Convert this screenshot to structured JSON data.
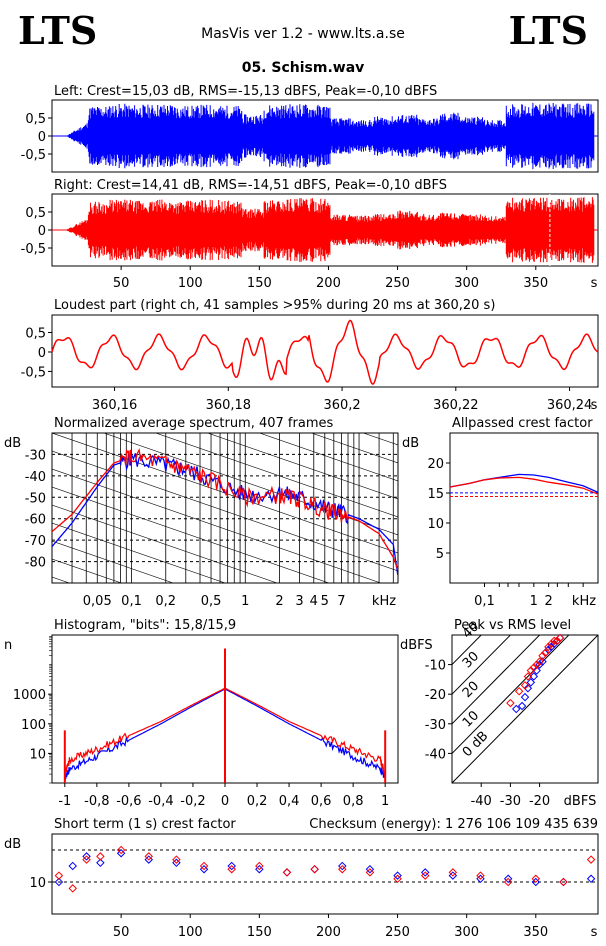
{
  "header": {
    "logo_left": "LTS",
    "logo_right": "LTS",
    "app_title": "MasVis ver 1.2 - www.lts.a.se",
    "file_title": "05. Schism.wav"
  },
  "colors": {
    "left": "#0000ff",
    "right": "#ff0000",
    "grid": "#000000",
    "text": "#000000"
  },
  "chart_data": [
    {
      "type": "area",
      "title": "Left: Crest=15,03 dB, RMS=-15,13 dBFS, Peak=-0,10 dBFS",
      "ytick_labels": [
        "0,5",
        "0",
        "-0,5"
      ],
      "yticks": [
        0.5,
        0,
        -0.5
      ],
      "ylim": [
        -1,
        1
      ],
      "xlim": [
        0,
        395
      ],
      "series": [
        {
          "values": [
            0.45,
            0.85,
            0.9,
            0.88,
            0.9,
            0.85,
            0.88,
            0.85,
            0.6,
            0.88,
            0.9,
            0.88,
            0.5,
            0.45,
            0.55,
            0.6,
            0.5,
            0.65,
            0.55,
            0.45,
            0.9,
            0.92,
            0.92,
            0.92
          ]
        }
      ]
    },
    {
      "type": "area",
      "title": "Right: Crest=14,41 dB, RMS=-14,51 dBFS, Peak=-0,10 dBFS",
      "ytick_labels": [
        "0,5",
        "0",
        "-0,5"
      ],
      "yticks": [
        0.5,
        0,
        -0.5
      ],
      "ylim": [
        -1,
        1
      ],
      "xlim": [
        0,
        395
      ],
      "xtick_labels": [
        "50",
        "100",
        "150",
        "200",
        "250",
        "300",
        "350",
        "s"
      ],
      "xticks": [
        50,
        100,
        150,
        200,
        250,
        300,
        350
      ],
      "marker_s": 360.2,
      "series": [
        {
          "values": [
            0.4,
            0.8,
            0.85,
            0.82,
            0.85,
            0.82,
            0.85,
            0.82,
            0.6,
            0.85,
            0.9,
            0.88,
            0.45,
            0.4,
            0.45,
            0.55,
            0.45,
            0.5,
            0.45,
            0.4,
            0.9,
            0.92,
            0.92,
            0.92
          ]
        }
      ]
    },
    {
      "type": "line",
      "title": "Loudest part (right ch, 41 samples >95% during 20 ms at 360,20 s)",
      "ytick_labels": [
        "0,5",
        "0",
        "-0,5"
      ],
      "yticks": [
        0.5,
        0,
        -0.5
      ],
      "ylim": [
        -0.9,
        0.95
      ],
      "xlim": [
        360.149,
        360.245
      ],
      "xtick_labels": [
        "360,16",
        "360,18",
        "360,2",
        "360,22",
        "360,24",
        "s"
      ],
      "xticks": [
        360.16,
        360.18,
        360.2,
        360.22,
        360.24
      ]
    },
    {
      "type": "line",
      "title": "Normalized average spectrum, 407 frames",
      "ylabel": "dB",
      "ytick_labels": [
        "-30",
        "-40",
        "-50",
        "-60",
        "-70",
        "-80"
      ],
      "yticks": [
        -30,
        -40,
        -50,
        -60,
        -70,
        -80
      ],
      "ylim": [
        -90,
        -20
      ],
      "xscale": "log",
      "xlim": [
        0.02,
        22
      ],
      "xtick_labels": [
        "0,05",
        "0,1",
        "0,2",
        "0,5",
        "1",
        "2",
        "3",
        "4",
        "5",
        "7",
        "kHz"
      ],
      "xticks": [
        0.05,
        0.1,
        0.2,
        0.5,
        1,
        2,
        3,
        4,
        5,
        7
      ],
      "series": [
        {
          "x": [
            0.02,
            0.03,
            0.05,
            0.07,
            0.1,
            0.2,
            0.3,
            0.5,
            1,
            2,
            3,
            5,
            7,
            10,
            15,
            20,
            22
          ],
          "values": [
            -73,
            -62,
            -45,
            -35,
            -32,
            -35,
            -37,
            -42,
            -49,
            -48,
            -50,
            -55,
            -57,
            -60,
            -65,
            -72,
            -87
          ]
        },
        {
          "x": [
            0.02,
            0.03,
            0.05,
            0.07,
            0.1,
            0.2,
            0.3,
            0.5,
            1,
            2,
            3,
            5,
            7,
            10,
            15,
            20,
            22
          ],
          "values": [
            -66,
            -58,
            -43,
            -34,
            -31,
            -34,
            -37,
            -42,
            -50,
            -49,
            -51,
            -56,
            -58,
            -61,
            -67,
            -78,
            -84
          ]
        }
      ]
    },
    {
      "type": "line",
      "title": "Allpassed crest factor",
      "ylabel": "dB",
      "ytick_labels": [
        "20",
        "15",
        "10",
        "5"
      ],
      "yticks": [
        20,
        15,
        10,
        5
      ],
      "ylim": [
        0,
        25
      ],
      "xscale": "log",
      "xlim": [
        0.02,
        20
      ],
      "xtick_labels": [
        "0,1",
        "1",
        "2",
        "kHz"
      ],
      "xticks": [
        0.1,
        1,
        2
      ],
      "ref_lines": [
        15.03,
        14.41
      ],
      "series": [
        {
          "x": [
            0.02,
            0.05,
            0.1,
            0.2,
            0.5,
            1,
            2,
            5,
            10,
            20
          ],
          "values": [
            16.0,
            16.6,
            17.2,
            17.6,
            18.1,
            18.0,
            17.6,
            16.8,
            16.2,
            15.1
          ]
        },
        {
          "x": [
            0.02,
            0.05,
            0.1,
            0.2,
            0.5,
            1,
            2,
            5,
            10,
            20
          ],
          "values": [
            16.0,
            16.6,
            17.2,
            17.5,
            17.6,
            17.3,
            16.8,
            16.3,
            15.8,
            14.8
          ]
        }
      ]
    },
    {
      "type": "line",
      "title": "Histogram, \"bits\": 15,8/15,9",
      "ylabel": "n",
      "ytick_labels": [
        "1000",
        "100",
        "10"
      ],
      "yticks": [
        1000,
        100,
        10
      ],
      "yscale": "log",
      "ylim": [
        1,
        100000
      ],
      "xlim": [
        -1.08,
        1.08
      ],
      "xtick_labels": [
        "-1",
        "-0,8",
        "-0,6",
        "-0,4",
        "-0,2",
        "0",
        "0,2",
        "0,4",
        "0,6",
        "0,8",
        "1"
      ],
      "xticks": [
        -1,
        -0.8,
        -0.6,
        -0.4,
        -0.2,
        0,
        0.2,
        0.4,
        0.6,
        0.8,
        1
      ],
      "series": [
        {
          "x": [
            -1,
            -0.97,
            -0.8,
            -0.6,
            -0.4,
            -0.2,
            0,
            0.2,
            0.4,
            0.6,
            0.8,
            0.97,
            1
          ],
          "values": [
            1.5,
            3,
            8,
            28,
            100,
            400,
            1500,
            400,
            100,
            28,
            8,
            3,
            1.5
          ]
        },
        {
          "x": [
            -1,
            -0.97,
            -0.8,
            -0.6,
            -0.4,
            -0.2,
            0,
            0.2,
            0.4,
            0.6,
            0.8,
            0.97,
            1
          ],
          "values": [
            2,
            6,
            14,
            40,
            120,
            450,
            1600,
            450,
            120,
            40,
            14,
            6,
            2
          ]
        }
      ]
    },
    {
      "type": "scatter",
      "title": "Peak vs RMS level",
      "ylabel": "dBFS",
      "xlabel": "dBFS",
      "ytick_labels": [
        "-10",
        "-20",
        "-30",
        "-40"
      ],
      "yticks": [
        -10,
        -20,
        -30,
        -40
      ],
      "ylim": [
        -50,
        0
      ],
      "xtick_labels": [
        "-40",
        "-30",
        "-20"
      ],
      "xticks": [
        -40,
        -30,
        -20
      ],
      "xlim": [
        -50,
        0
      ],
      "diag_labels": [
        "40",
        "30",
        "20",
        "10",
        "0 dB"
      ],
      "diag_offsets": [
        40,
        30,
        20,
        10,
        0
      ],
      "series": [
        {
          "x": [
            -28,
            -26,
            -25,
            -24,
            -23,
            -22,
            -21,
            -20,
            -19,
            -18,
            -17,
            -16,
            -15,
            -14,
            -13
          ],
          "values": [
            -25,
            -24,
            -21,
            -18,
            -16,
            -14,
            -12,
            -10,
            -9,
            -6,
            -5,
            -4,
            -3,
            -2,
            -1
          ]
        },
        {
          "x": [
            -30,
            -27,
            -25,
            -24,
            -23,
            -22,
            -21,
            -20,
            -19,
            -18,
            -17,
            -16,
            -15,
            -14,
            -13
          ],
          "values": [
            -23,
            -19,
            -17,
            -14,
            -12,
            -11,
            -10,
            -9,
            -7,
            -6,
            -4,
            -3,
            -2,
            -2,
            -1
          ]
        }
      ]
    },
    {
      "type": "scatter",
      "title": "Short term (1 s) crest factor",
      "checksum": "Checksum (energy):  1 276 106 109 435 639",
      "ylabel": "dB",
      "ytick_labels": [
        "10"
      ],
      "yticks": [
        10
      ],
      "ylim": [
        0,
        25
      ],
      "xlim": [
        0,
        395
      ],
      "ref_lines": [
        20,
        10
      ],
      "xtick_labels": [
        "50",
        "100",
        "150",
        "200",
        "250",
        "300",
        "350",
        "s"
      ],
      "xticks": [
        50,
        100,
        150,
        200,
        250,
        300,
        350
      ],
      "series": [
        {
          "x": [
            5,
            15,
            25,
            35,
            50,
            70,
            90,
            110,
            130,
            150,
            170,
            190,
            210,
            230,
            250,
            270,
            290,
            310,
            330,
            350,
            370,
            390
          ],
          "values": [
            10,
            15,
            18,
            16,
            19,
            17,
            16,
            14,
            15,
            14,
            13,
            14,
            15,
            14,
            12,
            13,
            12,
            11,
            11,
            10,
            10,
            11
          ]
        },
        {
          "x": [
            5,
            15,
            25,
            35,
            50,
            70,
            90,
            110,
            130,
            150,
            170,
            190,
            210,
            230,
            250,
            270,
            290,
            310,
            330,
            350,
            370,
            390
          ],
          "values": [
            12,
            8,
            17,
            18,
            20,
            18,
            17,
            15,
            14,
            15,
            13,
            14,
            14,
            13,
            11,
            12,
            13,
            12,
            10,
            11,
            10,
            17
          ]
        }
      ]
    }
  ]
}
